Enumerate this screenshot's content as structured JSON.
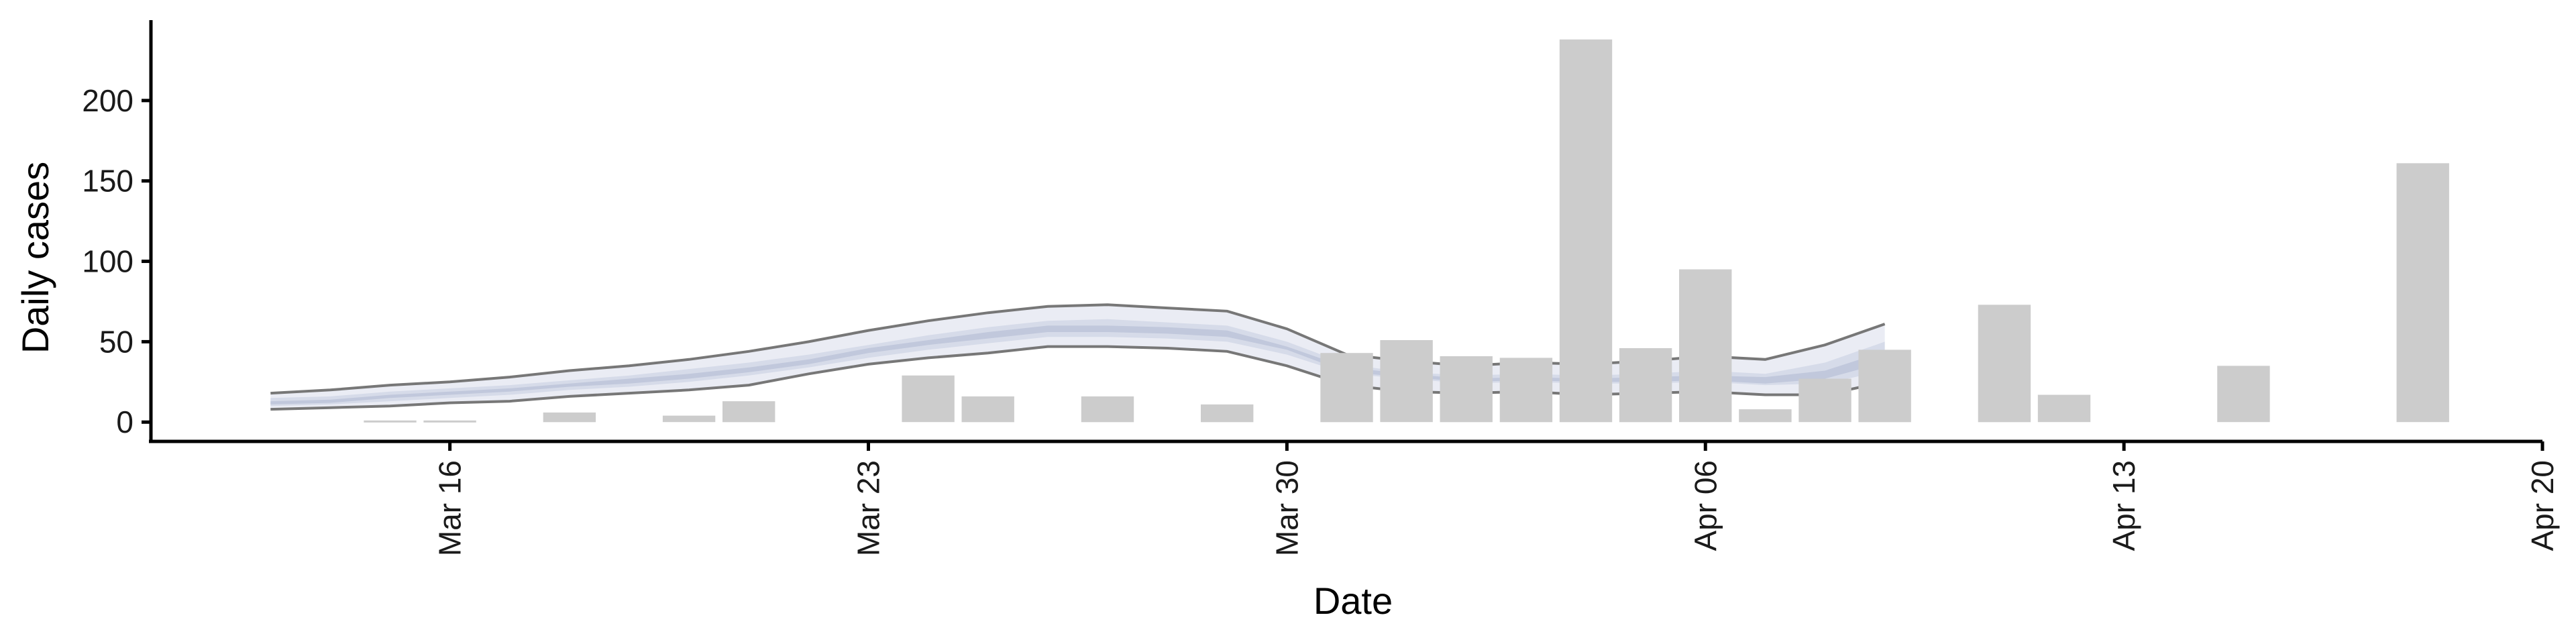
{
  "chart_data": {
    "type": "bar",
    "xlabel": "Date",
    "ylabel": "Daily cases",
    "x_ticks": [
      "2020-03-16",
      "2020-03-23",
      "2020-03-30",
      "2020-04-06",
      "2020-04-13",
      "2020-04-20"
    ],
    "x_tick_labels": [
      "Mar 16",
      "Mar 23",
      "Mar 30",
      "Apr 06",
      "Apr 13",
      "Apr 20"
    ],
    "y_ticks": [
      0,
      50,
      100,
      150,
      200
    ],
    "y_tick_labels": [
      "0",
      "50",
      "100",
      "150",
      "200"
    ],
    "xlim": [
      "2020-03-11",
      "2020-04-20"
    ],
    "ylim": [
      -12,
      250
    ],
    "grid": false,
    "colors": {
      "bars": "#cccccc",
      "band_outer": "#eaecf4",
      "band_mid": "#d6dbe9",
      "band_inner": "#c1c8dc",
      "envelope": "#777777"
    },
    "bars": {
      "name": "",
      "dates": [
        "2020-03-15",
        "2020-03-16",
        "2020-03-18",
        "2020-03-20",
        "2020-03-21",
        "2020-03-24",
        "2020-03-25",
        "2020-03-27",
        "2020-03-29",
        "2020-03-31",
        "2020-04-01",
        "2020-04-02",
        "2020-04-03",
        "2020-04-04",
        "2020-04-05",
        "2020-04-06",
        "2020-04-07",
        "2020-04-08",
        "2020-04-09",
        "2020-04-11",
        "2020-04-12",
        "2020-04-15",
        "2020-04-18"
      ],
      "values": [
        1,
        1,
        6,
        4,
        13,
        29,
        16,
        16,
        11,
        43,
        51,
        41,
        40,
        238,
        46,
        95,
        8,
        27,
        45,
        73,
        17,
        35,
        161
      ]
    },
    "bands": {
      "dates": [
        "2020-03-13",
        "2020-03-14",
        "2020-03-15",
        "2020-03-16",
        "2020-03-17",
        "2020-03-18",
        "2020-03-19",
        "2020-03-20",
        "2020-03-21",
        "2020-03-22",
        "2020-03-23",
        "2020-03-24",
        "2020-03-25",
        "2020-03-26",
        "2020-03-27",
        "2020-03-28",
        "2020-03-29",
        "2020-03-30",
        "2020-03-31",
        "2020-04-01",
        "2020-04-02",
        "2020-04-03",
        "2020-04-04",
        "2020-04-05",
        "2020-04-06",
        "2020-04-07",
        "2020-04-08",
        "2020-04-09"
      ],
      "lower_90": [
        8,
        9,
        10,
        12,
        13,
        16,
        18,
        20,
        23,
        30,
        36,
        40,
        43,
        47,
        47,
        46,
        44,
        35,
        23,
        19,
        18,
        19,
        17,
        18,
        19,
        17,
        17,
        25
      ],
      "upper_90": [
        18,
        20,
        23,
        25,
        28,
        32,
        35,
        39,
        44,
        50,
        57,
        63,
        68,
        72,
        73,
        71,
        69,
        58,
        42,
        38,
        35,
        37,
        36,
        38,
        41,
        39,
        48,
        61
      ],
      "lower_50": [
        10,
        11,
        13,
        15,
        17,
        20,
        22,
        25,
        29,
        34,
        40,
        45,
        49,
        53,
        53,
        52,
        50,
        42,
        30,
        27,
        24,
        25,
        24,
        24,
        25,
        23,
        24,
        32
      ],
      "upper_50": [
        15,
        16,
        19,
        21,
        23,
        26,
        29,
        33,
        37,
        42,
        48,
        54,
        59,
        63,
        64,
        62,
        60,
        50,
        36,
        31,
        29,
        30,
        29,
        30,
        32,
        30,
        37,
        50
      ],
      "lower_20": [
        11,
        12,
        15,
        17,
        19,
        22,
        24,
        27,
        31,
        36,
        43,
        48,
        52,
        56,
        56,
        55,
        53,
        45,
        31,
        28,
        25,
        26,
        25,
        25,
        26,
        24,
        27,
        37
      ],
      "upper_20": [
        13,
        14,
        17,
        19,
        21,
        24,
        27,
        30,
        34,
        39,
        46,
        51,
        56,
        60,
        60,
        59,
        57,
        47,
        34,
        30,
        27,
        28,
        27,
        28,
        29,
        28,
        32,
        44
      ]
    }
  }
}
